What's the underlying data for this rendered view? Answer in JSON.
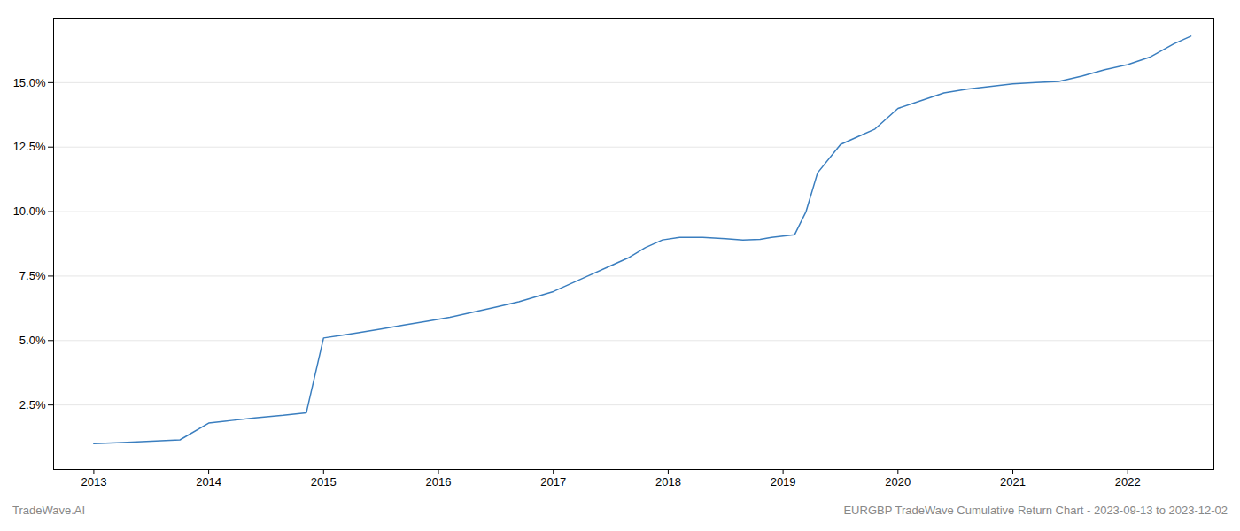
{
  "chart_data": {
    "type": "line",
    "x": [
      2013.0,
      2013.25,
      2013.5,
      2013.75,
      2014.0,
      2014.2,
      2014.4,
      2014.65,
      2014.85,
      2015.0,
      2015.15,
      2015.3,
      2015.5,
      2015.7,
      2015.9,
      2016.1,
      2016.3,
      2016.5,
      2016.7,
      2016.85,
      2017.0,
      2017.15,
      2017.3,
      2017.5,
      2017.65,
      2017.8,
      2017.95,
      2018.1,
      2018.3,
      2018.5,
      2018.65,
      2018.8,
      2018.9,
      2019.0,
      2019.1,
      2019.2,
      2019.3,
      2019.5,
      2019.65,
      2019.8,
      2020.0,
      2020.2,
      2020.4,
      2020.6,
      2020.8,
      2021.0,
      2021.2,
      2021.4,
      2021.6,
      2021.8,
      2022.0,
      2022.2,
      2022.4,
      2022.55
    ],
    "values": [
      1.0,
      1.05,
      1.1,
      1.15,
      1.8,
      1.9,
      2.0,
      2.1,
      2.2,
      5.1,
      5.2,
      5.3,
      5.45,
      5.6,
      5.75,
      5.9,
      6.1,
      6.3,
      6.5,
      6.7,
      6.9,
      7.2,
      7.5,
      7.9,
      8.2,
      8.6,
      8.9,
      9.0,
      9.0,
      8.95,
      8.9,
      8.92,
      9.0,
      9.05,
      9.1,
      10.0,
      11.5,
      12.6,
      12.9,
      13.2,
      14.0,
      14.3,
      14.6,
      14.75,
      14.85,
      14.95,
      15.0,
      15.05,
      15.25,
      15.5,
      15.7,
      16.0,
      16.5,
      16.8
    ],
    "color": "#3a7ebf",
    "xlim": [
      2012.65,
      2022.75
    ],
    "ylim": [
      0.0,
      17.5
    ],
    "xticks": [
      2013,
      2014,
      2015,
      2016,
      2017,
      2018,
      2019,
      2020,
      2021,
      2022
    ],
    "yticks": [
      {
        "value": 2.5,
        "label": "2.5%"
      },
      {
        "value": 5.0,
        "label": "5.0%"
      },
      {
        "value": 7.5,
        "label": "7.5%"
      },
      {
        "value": 10.0,
        "label": "10.0%"
      },
      {
        "value": 12.5,
        "label": "12.5%"
      },
      {
        "value": 15.0,
        "label": "15.0%"
      }
    ],
    "grid": "y",
    "annotations": [
      "TradeWave.AI",
      "EURGBP TradeWave Cumulative Return Chart - 2023-09-13 to 2023-12-02"
    ]
  }
}
